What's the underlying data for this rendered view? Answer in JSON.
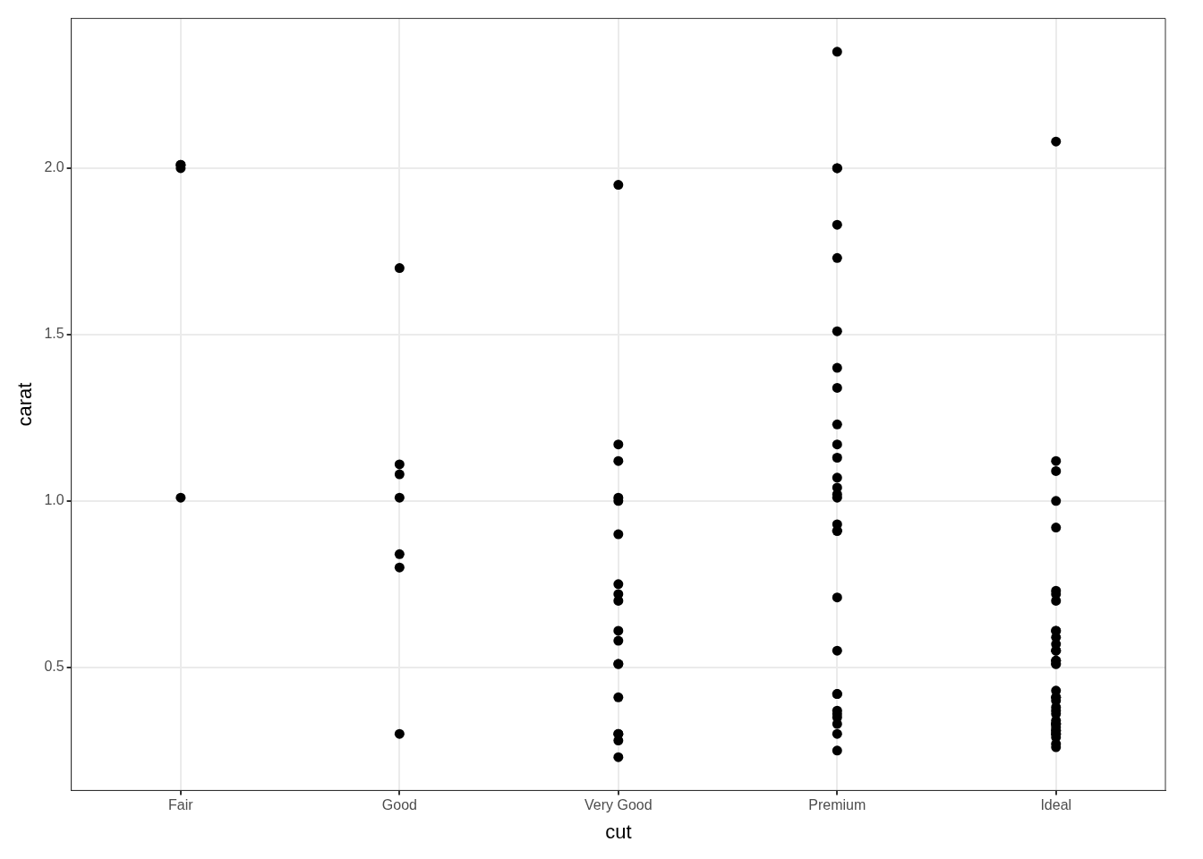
{
  "chart_data": {
    "type": "scatter",
    "xlabel": "cut",
    "ylabel": "carat",
    "ylim": [
      0.13,
      2.45
    ],
    "categories": [
      "Fair",
      "Good",
      "Very Good",
      "Premium",
      "Ideal"
    ],
    "yticks": [
      {
        "value": 0.5,
        "label": "0.5"
      },
      {
        "value": 1,
        "label": "1.0"
      },
      {
        "value": 1.5,
        "label": "1.5"
      },
      {
        "value": 2,
        "label": "2.0"
      }
    ],
    "grid": true,
    "legend": false,
    "marker": "circle",
    "series": [
      {
        "color": "#000000",
        "x": [
          "Fair",
          "Fair",
          "Fair",
          "Fair",
          "Good",
          "Good",
          "Good",
          "Good",
          "Good",
          "Good",
          "Good",
          "Very Good",
          "Very Good",
          "Very Good",
          "Very Good",
          "Very Good",
          "Very Good",
          "Very Good",
          "Very Good",
          "Very Good",
          "Very Good",
          "Very Good",
          "Very Good",
          "Very Good",
          "Very Good",
          "Very Good",
          "Very Good",
          "Very Good",
          "Very Good",
          "Premium",
          "Premium",
          "Premium",
          "Premium",
          "Premium",
          "Premium",
          "Premium",
          "Premium",
          "Premium",
          "Premium",
          "Premium",
          "Premium",
          "Premium",
          "Premium",
          "Premium",
          "Premium",
          "Premium",
          "Premium",
          "Premium",
          "Premium",
          "Premium",
          "Premium",
          "Premium",
          "Premium",
          "Premium",
          "Premium",
          "Premium",
          "Premium",
          "Ideal",
          "Ideal",
          "Ideal",
          "Ideal",
          "Ideal",
          "Ideal",
          "Ideal",
          "Ideal",
          "Ideal",
          "Ideal",
          "Ideal",
          "Ideal",
          "Ideal",
          "Ideal",
          "Ideal",
          "Ideal",
          "Ideal",
          "Ideal",
          "Ideal",
          "Ideal",
          "Ideal",
          "Ideal",
          "Ideal",
          "Ideal",
          "Ideal",
          "Ideal",
          "Ideal",
          "Ideal",
          "Ideal",
          "Ideal",
          "Ideal",
          "Ideal",
          "Ideal",
          "Ideal",
          "Ideal",
          "Ideal",
          "Ideal"
        ],
        "values": [
          2.0,
          2.01,
          2.01,
          1.01,
          1.08,
          1.11,
          1.01,
          0.84,
          0.8,
          0.3,
          1.7,
          1.95,
          1.17,
          1.12,
          1.01,
          1.0,
          0.9,
          0.75,
          0.72,
          0.7,
          0.61,
          0.58,
          0.51,
          0.51,
          0.41,
          0.3,
          0.3,
          0.28,
          0.23,
          2.35,
          2.0,
          2.0,
          1.83,
          1.73,
          1.51,
          1.4,
          1.34,
          1.23,
          1.17,
          1.13,
          1.07,
          1.04,
          1.02,
          1.01,
          0.93,
          0.91,
          0.91,
          0.71,
          0.55,
          0.42,
          0.42,
          0.37,
          0.36,
          0.35,
          0.33,
          0.3,
          0.25,
          2.08,
          1.12,
          1.09,
          1.0,
          0.92,
          0.73,
          0.72,
          0.7,
          0.61,
          0.61,
          0.59,
          0.57,
          0.55,
          0.55,
          0.52,
          0.52,
          0.51,
          0.51,
          0.43,
          0.41,
          0.41,
          0.4,
          0.38,
          0.37,
          0.36,
          0.34,
          0.33,
          0.33,
          0.33,
          0.32,
          0.31,
          0.31,
          0.3,
          0.3,
          0.29,
          0.27,
          0.26
        ]
      }
    ]
  }
}
